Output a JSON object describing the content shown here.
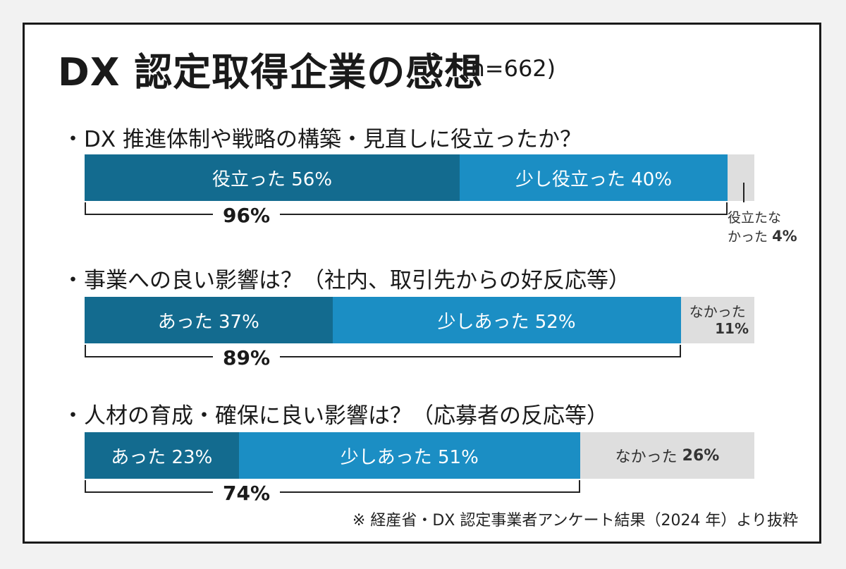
{
  "title": "DX 認定取得企業の感想",
  "sample": "(n=662)",
  "chart_data": [
    {
      "type": "bar",
      "question": "・DX 推進体制や戦略の構築・見直しに役立ったか？",
      "categories": [
        "役立った",
        "少し役立った",
        "役立たなかった"
      ],
      "values": [
        56,
        40,
        4
      ],
      "unit": "%",
      "segment_labels": [
        "役立った 56%",
        "少し役立った 40%",
        ""
      ],
      "outside_label_line1": "役立たな",
      "outside_label_line2": "かった",
      "outside_label_value": "4%",
      "total_label": "96%"
    },
    {
      "type": "bar",
      "question": "・事業への良い影響は？（社内、取引先からの好反応等）",
      "categories": [
        "あった",
        "少しあった",
        "なかった"
      ],
      "values": [
        37,
        52,
        11
      ],
      "unit": "%",
      "segment_labels": [
        "あった 37%",
        "少しあった 52%",
        ""
      ],
      "outside_label_line1": "なかった",
      "outside_label_value": "11%",
      "total_label": "89%"
    },
    {
      "type": "bar",
      "question": "・人材の育成・確保に良い影響は？（応募者の反応等）",
      "categories": [
        "あった",
        "少しあった",
        "なかった"
      ],
      "values": [
        23,
        51,
        26
      ],
      "unit": "%",
      "segment_labels": [
        "あった 23%",
        "少しあった 51%",
        "なかった"
      ],
      "segment_value_bold": "26%",
      "total_label": "74%"
    }
  ],
  "colors": {
    "dark": "#136b8f",
    "mid": "#1b8ec4",
    "light": "#dedede"
  },
  "source_note": "※ 経産省・DX 認定事業者アンケート結果（2024 年）より抜粋"
}
